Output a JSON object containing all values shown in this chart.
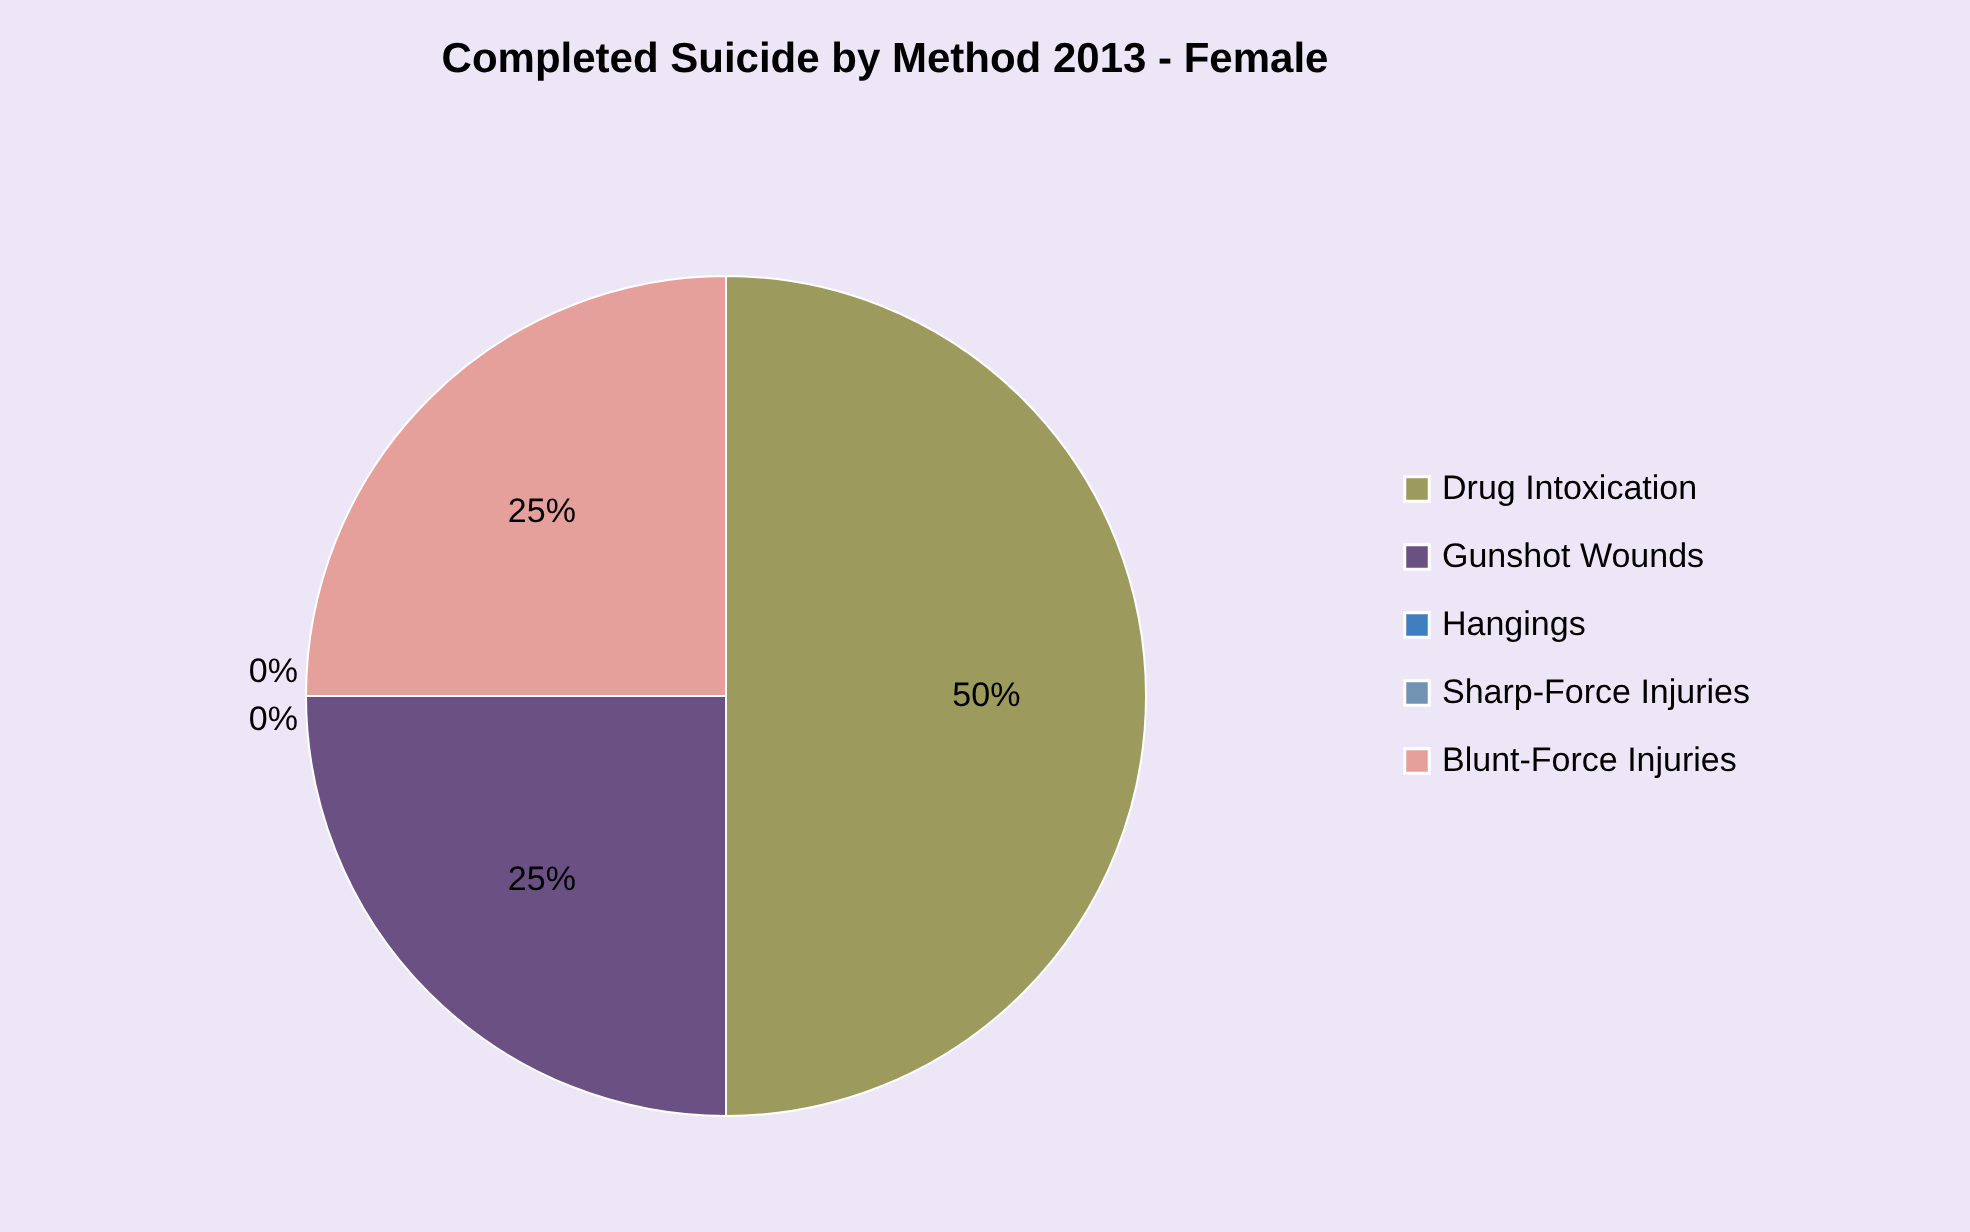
{
  "chart_data": {
    "type": "pie",
    "title": "Completed Suicide by Method 2013 - Female",
    "categories": [
      "Drug Intoxication",
      "Gunshot Wounds",
      "Hangings",
      "Sharp-Force Injuries",
      "Blunt-Force Injuries"
    ],
    "values": [
      50,
      25,
      0,
      0,
      25
    ],
    "colors": [
      "#9c9a5c",
      "#6b5083",
      "#3f7fc0",
      "#7393b4",
      "#e5a09c"
    ],
    "value_labels": [
      "50%",
      "25%",
      "0%",
      "0%",
      "25%"
    ],
    "legend": "right"
  }
}
